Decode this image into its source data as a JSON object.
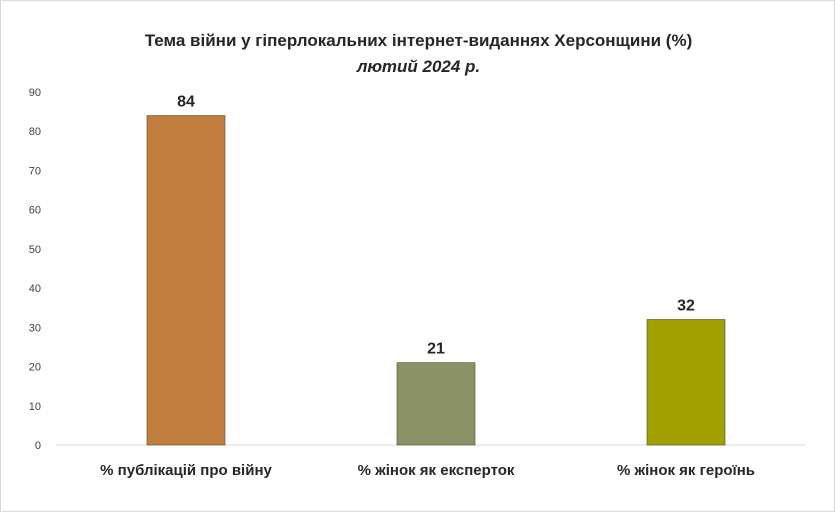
{
  "chart_data": {
    "type": "bar",
    "title": "Тема війни у гіперлокальних інтернет-виданнях  Херсонщини (%)",
    "subtitle": "лютий 2024 р.",
    "categories": [
      "% публікацій про війну",
      "% жінок як експерток",
      "% жінок як героїнь"
    ],
    "values": [
      84,
      21,
      32
    ],
    "colors": [
      "#c17e3f",
      "#8a9166",
      "#a0a000"
    ],
    "ylim": [
      0,
      90
    ],
    "yticks": [
      0,
      10,
      20,
      30,
      40,
      50,
      60,
      70,
      80,
      90
    ],
    "grid": false,
    "legend": "none"
  }
}
